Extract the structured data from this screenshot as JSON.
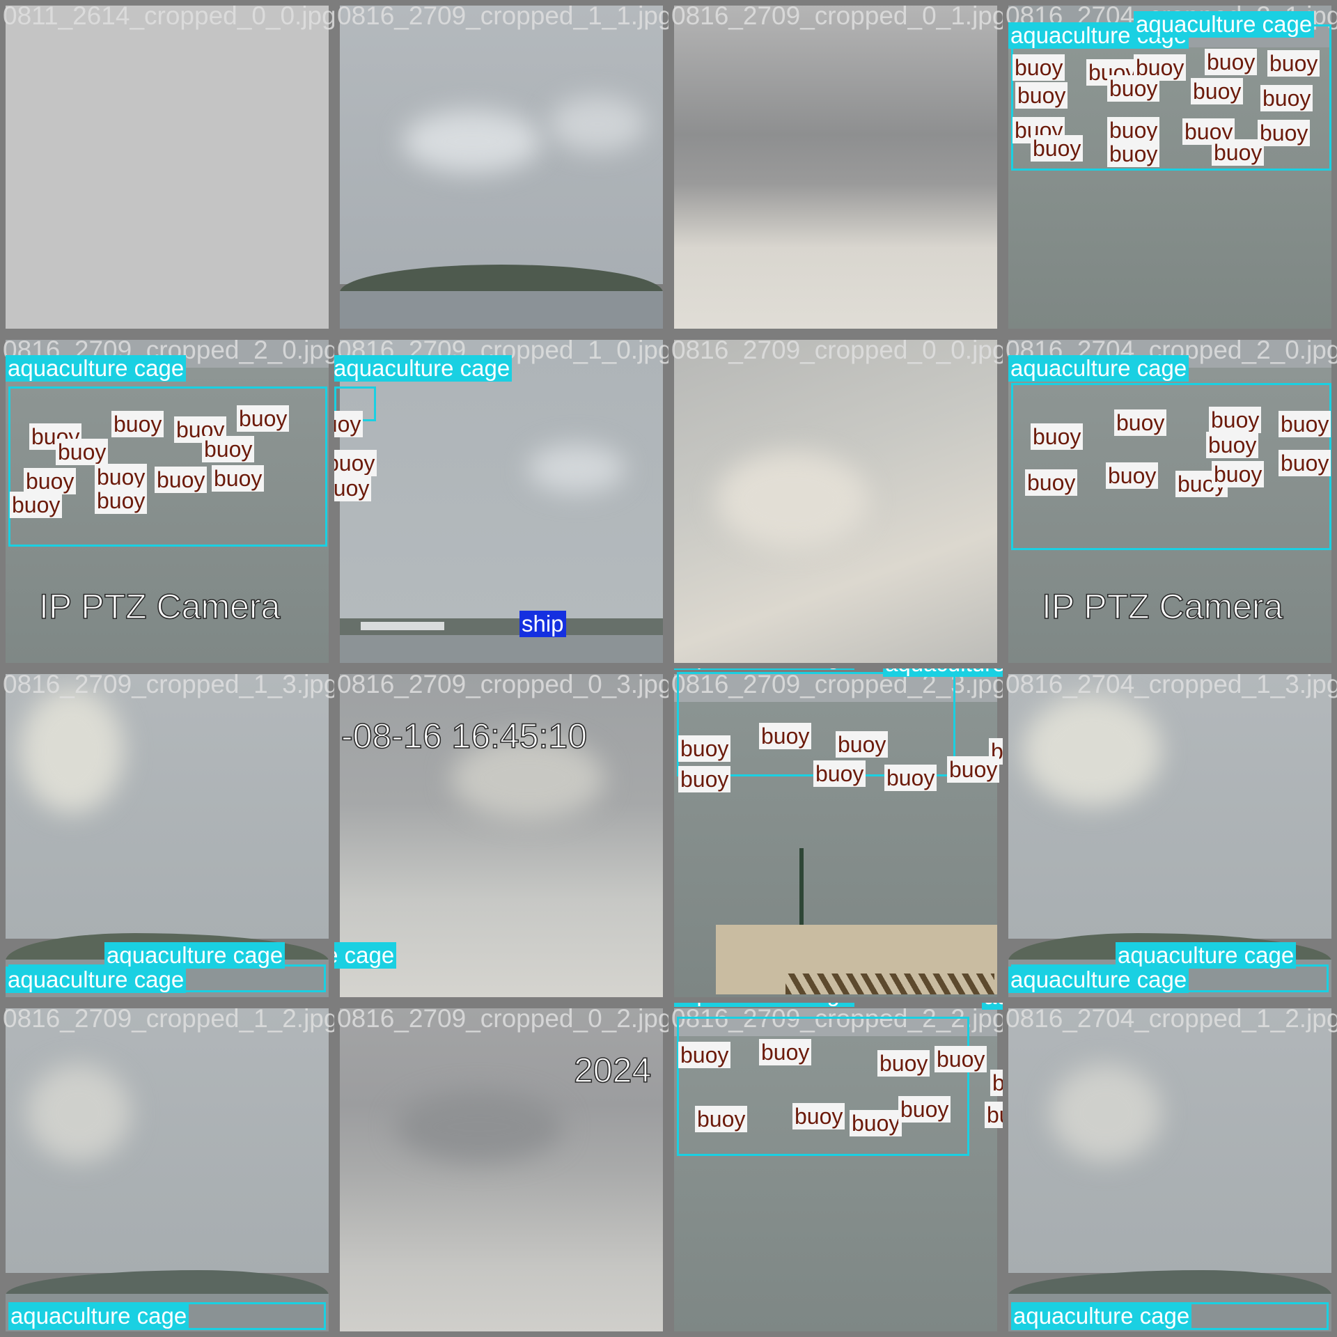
{
  "title": "",
  "class_labels": {
    "cage": "aquaculture cage",
    "buoy": "buoy",
    "ship": "ship"
  },
  "colors": {
    "cage": "#1ad0e2",
    "ship": "#1530e0",
    "buoy_text": "#6b1a0a",
    "tile_border": "#7d7d7d"
  },
  "overlays": {
    "ptz": "IP PTZ Camera",
    "timestamp": "-08-16 16:45:10",
    "year": "2024"
  },
  "tiles": [
    {
      "filename": "0811_2614_cropped_0_0.jpg",
      "scene": "fog"
    },
    {
      "filename": "0816_2709_cropped_1_1.jpg",
      "scene": "island"
    },
    {
      "filename": "0816_2709_cropped_0_1.jpg",
      "scene": "cloud"
    },
    {
      "filename": "0816_2704_cropped_2_1.jpg",
      "scene": "sea-top"
    },
    {
      "filename": "0816_2709_cropped_2_0.jpg",
      "scene": "sea-top"
    },
    {
      "filename": "0816_2709_cropped_1_0.jpg",
      "scene": "sky-coast"
    },
    {
      "filename": "0816_2709_cropped_0_0.jpg",
      "scene": "cloud-light"
    },
    {
      "filename": "0816_2704_cropped_2_0.jpg",
      "scene": "sea-top"
    },
    {
      "filename": "0816_2709_cropped_1_3.jpg",
      "scene": "sky-coast"
    },
    {
      "filename": "0816_2709_cropped_0_3.jpg",
      "scene": "cloud"
    },
    {
      "filename": "0816_2709_cropped_2_3.jpg",
      "scene": "pier"
    },
    {
      "filename": "0816_2704_cropped_1_3.jpg",
      "scene": "sky-coast"
    },
    {
      "filename": "0816_2709_cropped_1_2.jpg",
      "scene": "sky-coast"
    },
    {
      "filename": "0816_2709_cropped_0_2.jpg",
      "scene": "cloud"
    },
    {
      "filename": "0816_2709_cropped_2_2.jpg",
      "scene": "sea-top"
    },
    {
      "filename": "0816_2704_cropped_1_2.jpg",
      "scene": "sky-coast"
    }
  ]
}
